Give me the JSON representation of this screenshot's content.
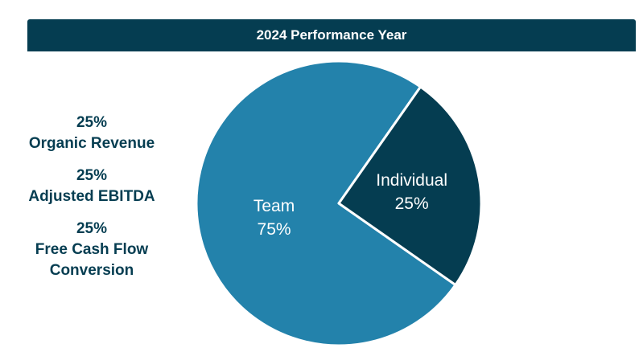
{
  "header": {
    "title": "2024 Performance Year"
  },
  "metrics": [
    {
      "percent": "25%",
      "label": "Organic Revenue"
    },
    {
      "percent": "25%",
      "label": "Adjusted EBITDA"
    },
    {
      "percent": "25%",
      "label": "Free Cash Flow\nConversion"
    }
  ],
  "chart_data": {
    "type": "pie",
    "title": "2024 Performance Year",
    "categories": [
      "Team",
      "Individual"
    ],
    "values": [
      75,
      25
    ],
    "value_labels": [
      "75%",
      "25%"
    ],
    "colors": [
      "#2382ab",
      "#053d51"
    ]
  }
}
